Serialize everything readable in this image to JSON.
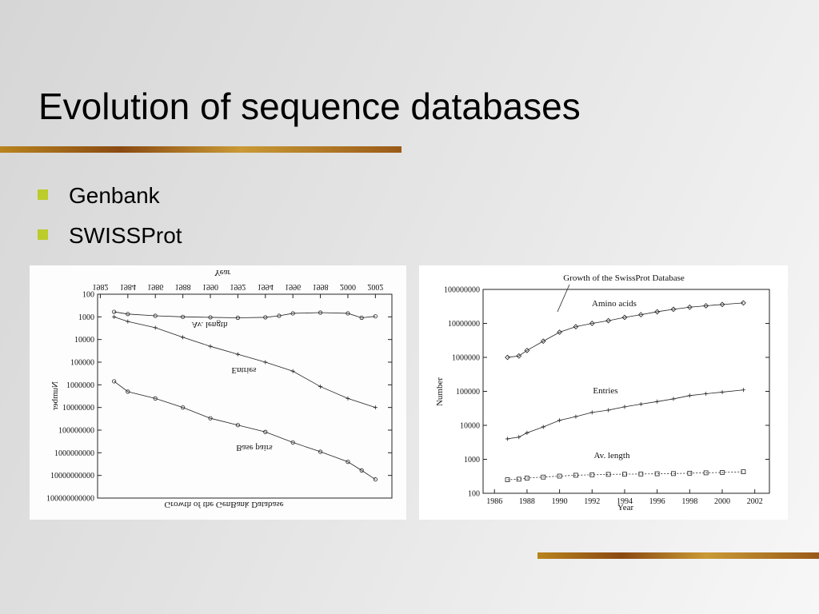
{
  "title": "Evolution of sequence databases",
  "bullets": [
    "Genbank",
    "SWISSProt"
  ],
  "chart_data": [
    {
      "type": "line",
      "title": "Growth of the GenBank Database",
      "xlabel": "Year",
      "ylabel": "Number",
      "log_scale": true,
      "y_inverted": true,
      "xaxis_top": true,
      "xlim": [
        1981.8,
        2003.2
      ],
      "xticks": [
        1982,
        1984,
        1986,
        1988,
        1990,
        1992,
        1994,
        1996,
        1998,
        2000,
        2002
      ],
      "ylim": [
        100,
        100000000000
      ],
      "yticks": [
        100,
        1000,
        10000,
        100000,
        1000000,
        10000000,
        100000000,
        1000000000,
        10000000000,
        100000000000
      ],
      "color": "#222222",
      "series": [
        {
          "name": "Av. length",
          "marker": "circle",
          "x": [
            1983,
            1984,
            1986,
            1988,
            1990,
            1992,
            1994,
            1995,
            1996,
            1998,
            2000,
            2001,
            2002
          ],
          "values": [
            600,
            750,
            900,
            1000,
            1050,
            1100,
            1050,
            900,
            700,
            650,
            700,
            1100,
            950
          ]
        },
        {
          "name": "Entries",
          "marker": "plus",
          "x": [
            1983,
            1984,
            1986,
            1988,
            1990,
            1992,
            1994,
            1996,
            1998,
            2000,
            2002
          ],
          "values": [
            1000,
            1600,
            3000,
            8000,
            20000,
            45000,
            100000,
            250000,
            1200000,
            4000000,
            10000000
          ]
        },
        {
          "name": "Base pairs",
          "marker": "circle",
          "x": [
            1983,
            1984,
            1986,
            1988,
            1990,
            1992,
            1994,
            1996,
            1998,
            2000,
            2001,
            2002
          ],
          "values": [
            700000,
            2000000,
            4000000,
            10000000,
            30000000,
            60000000,
            120000000,
            350000000,
            900000000,
            2500000000,
            6000000000,
            15000000000
          ]
        }
      ]
    },
    {
      "type": "line",
      "title": "Growth of the SwissProt Database",
      "xlabel": "Year",
      "ylabel": "Number",
      "log_scale": true,
      "y_inverted": false,
      "xaxis_top": false,
      "xlim": [
        1985.3,
        2002.9
      ],
      "xticks": [
        1986,
        1988,
        1990,
        1992,
        1994,
        1996,
        1998,
        2000,
        2002
      ],
      "ylim": [
        100,
        100000000
      ],
      "yticks": [
        100,
        1000,
        10000,
        100000,
        1000000,
        10000000,
        100000000
      ],
      "color": "#222222",
      "series": [
        {
          "name": "Amino acids",
          "marker": "diamond",
          "x": [
            1986.8,
            1987.5,
            1988,
            1989,
            1990,
            1991,
            1992,
            1993,
            1994,
            1995,
            1996,
            1997,
            1998,
            1999,
            2000,
            2001.3
          ],
          "values": [
            1000000,
            1100000,
            1600000,
            3000000,
            5500000,
            8000000,
            10000000,
            12000000,
            15000000,
            18000000,
            22000000,
            26000000,
            30000000,
            33000000,
            36000000,
            40000000
          ]
        },
        {
          "name": "Entries",
          "marker": "plus",
          "x": [
            1986.8,
            1987.5,
            1988,
            1989,
            1990,
            1991,
            1992,
            1993,
            1994,
            1995,
            1996,
            1997,
            1998,
            1999,
            2000,
            2001.3
          ],
          "values": [
            4000,
            4500,
            6000,
            9000,
            14000,
            18000,
            24000,
            28000,
            35000,
            42000,
            50000,
            60000,
            75000,
            85000,
            95000,
            110000
          ]
        },
        {
          "name": "Av. length",
          "marker": "square",
          "x": [
            1986.8,
            1987.5,
            1988,
            1989,
            1990,
            1991,
            1992,
            1993,
            1994,
            1995,
            1996,
            1997,
            1998,
            1999,
            2000,
            2001.3
          ],
          "values": [
            250,
            260,
            280,
            300,
            320,
            340,
            350,
            360,
            365,
            370,
            375,
            380,
            390,
            400,
            410,
            430
          ]
        }
      ]
    }
  ]
}
